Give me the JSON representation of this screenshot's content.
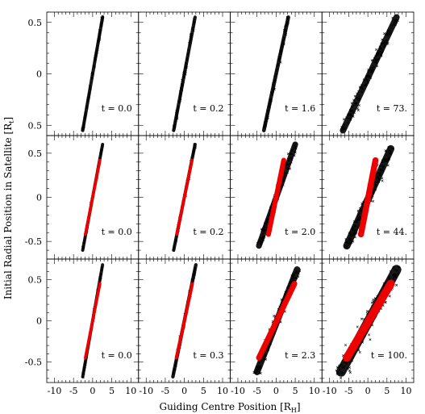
{
  "chart_data": {
    "type": "scatter",
    "xlabel": "Guiding Centre Position [R_H]",
    "ylabel": "Initial Radial Position in Satellite [R_t]",
    "x_ticks": [
      "-10",
      "-5",
      "0",
      "5",
      "10"
    ],
    "grid": false,
    "rows": [
      {
        "y_ticks": [
          "0.5",
          "0",
          "0.5"
        ],
        "ylim": [
          -0.6,
          0.6
        ],
        "panels": [
          {
            "time": "t = 0.0",
            "points": [
              [
                -2.6,
                -0.55
              ],
              [
                2.6,
                0.55
              ]
            ],
            "spread": 0.35,
            "red": null
          },
          {
            "time": "t = 0.2",
            "points": [
              [
                -2.8,
                -0.55
              ],
              [
                2.8,
                0.55
              ]
            ],
            "spread": 0.4,
            "red": null
          },
          {
            "time": "t = 1.6",
            "points": [
              [
                -3.2,
                -0.55
              ],
              [
                3.2,
                0.55
              ]
            ],
            "spread": 0.55,
            "red": null
          },
          {
            "time": "t = 73.",
            "points": [
              [
                -6.5,
                -0.55
              ],
              [
                7.5,
                0.55
              ]
            ],
            "spread": 1.6,
            "red": null
          }
        ]
      },
      {
        "y_ticks": [
          "0.5",
          "0",
          "-0.5"
        ],
        "ylim": [
          -0.7,
          0.7
        ],
        "panels": [
          {
            "time": "t = 0.0",
            "points": [
              [
                -2.6,
                -0.6
              ],
              [
                2.6,
                0.6
              ]
            ],
            "spread": 0.3,
            "red": [
              [
                -1.9,
                -0.42
              ],
              [
                1.9,
                0.42
              ]
            ]
          },
          {
            "time": "t = 0.2",
            "points": [
              [
                -2.8,
                -0.6
              ],
              [
                2.8,
                0.6
              ]
            ],
            "spread": 0.35,
            "red": [
              [
                -2.0,
                -0.42
              ],
              [
                2.0,
                0.42
              ]
            ]
          },
          {
            "time": "t = 2.0",
            "points": [
              [
                -4.5,
                -0.55
              ],
              [
                5.0,
                0.6
              ]
            ],
            "spread": 1.4,
            "red": [
              [
                -2.0,
                -0.42
              ],
              [
                2.0,
                0.42
              ]
            ]
          },
          {
            "time": "t = 44.",
            "points": [
              [
                -5.5,
                -0.55
              ],
              [
                6.0,
                0.55
              ]
            ],
            "spread": 2.0,
            "red": [
              [
                -1.8,
                -0.42
              ],
              [
                2.0,
                0.42
              ]
            ]
          }
        ]
      },
      {
        "y_ticks": [
          "0.5",
          "0",
          "-0.5"
        ],
        "ylim": [
          -0.75,
          0.75
        ],
        "panels": [
          {
            "time": "t = 0.0",
            "points": [
              [
                -2.6,
                -0.68
              ],
              [
                2.6,
                0.68
              ]
            ],
            "spread": 0.3,
            "red": [
              [
                -1.9,
                -0.45
              ],
              [
                1.9,
                0.45
              ]
            ]
          },
          {
            "time": "t = 0.3",
            "points": [
              [
                -3.0,
                -0.68
              ],
              [
                3.0,
                0.68
              ]
            ],
            "spread": 0.45,
            "red": [
              [
                -2.1,
                -0.45
              ],
              [
                2.1,
                0.45
              ]
            ]
          },
          {
            "time": "t = 2.3",
            "points": [
              [
                -5.0,
                -0.62
              ],
              [
                5.5,
                0.62
              ]
            ],
            "spread": 1.8,
            "red": [
              [
                -4.5,
                -0.45
              ],
              [
                4.8,
                0.45
              ]
            ]
          },
          {
            "time": "t = 100.",
            "points": [
              [
                -7.0,
                -0.62
              ],
              [
                7.5,
                0.62
              ]
            ],
            "spread": 3.2,
            "red": [
              [
                -5.5,
                -0.45
              ],
              [
                6.0,
                0.45
              ]
            ]
          }
        ]
      }
    ]
  },
  "colors": {
    "bound": "#000000",
    "stripped": "#ee0000",
    "frame": "#000000"
  },
  "labels": {
    "xlabel_main": "Guiding Centre Position [R",
    "xlabel_sub": "H",
    "ylabel_main": "Initial Radial Position in Satellite [R",
    "ylabel_sub": "t"
  }
}
